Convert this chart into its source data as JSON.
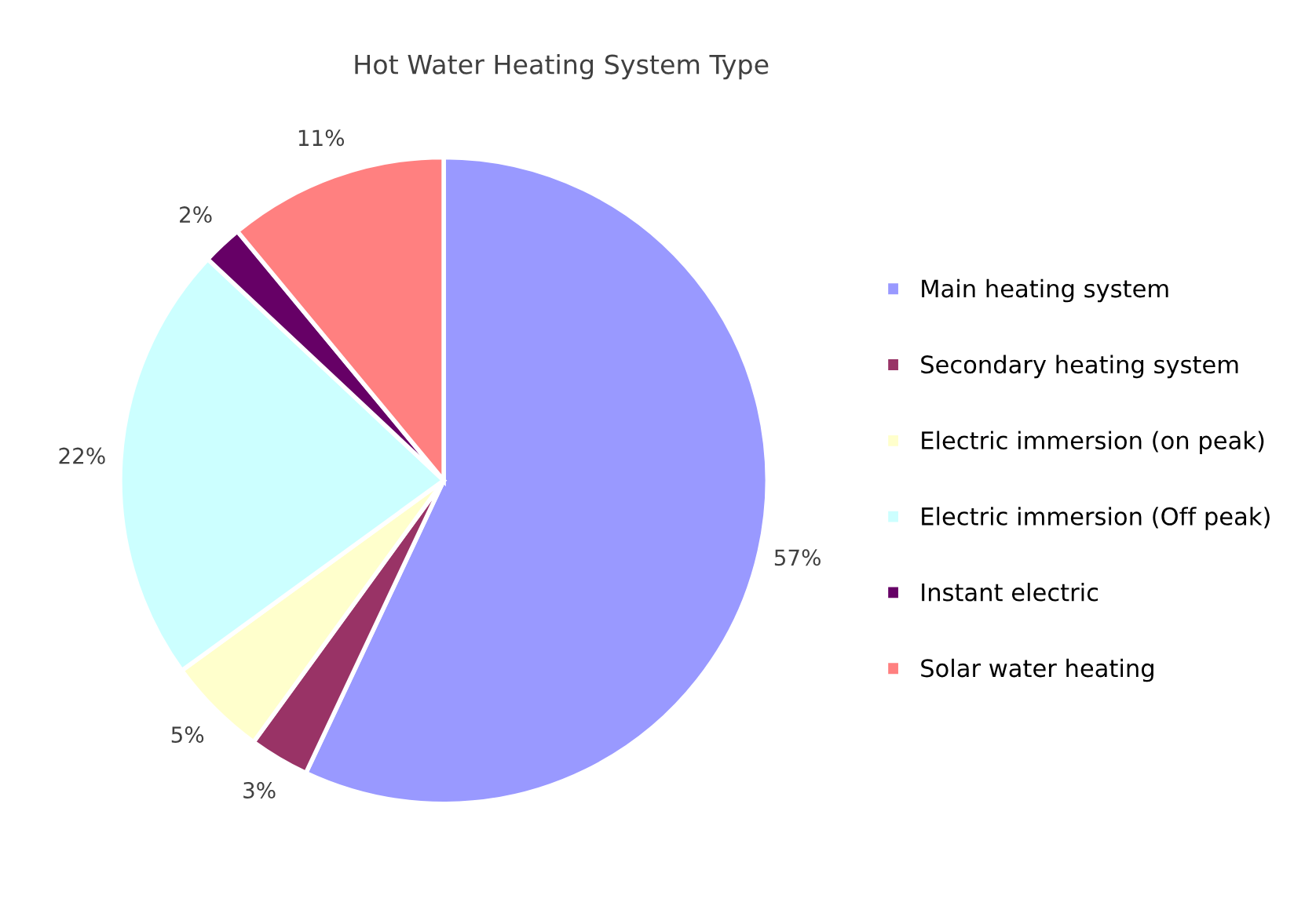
{
  "chart_data": {
    "type": "pie",
    "title": "Hot Water Heating System Type",
    "categories": [
      "Main heating system",
      "Secondary heating system",
      "Electric immersion (on peak)",
      "Electric immersion (Off peak)",
      "Instant electric",
      "Solar water heating"
    ],
    "values": [
      57,
      3,
      5,
      22,
      2,
      11
    ],
    "colors": [
      "#9999ff",
      "#993366",
      "#ffffcc",
      "#ccffff",
      "#660066",
      "#ff8080"
    ],
    "value_labels": [
      "57%",
      "3%",
      "5%",
      "22%",
      "2%",
      "11%"
    ],
    "legend": "right"
  }
}
